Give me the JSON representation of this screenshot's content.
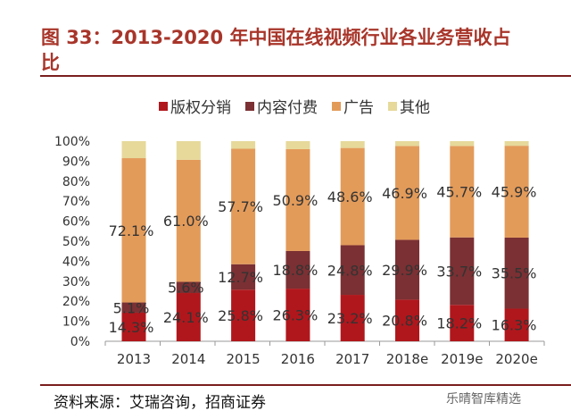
{
  "title_line1": "图 33：2013-2020 年中国在线视频行业各业务营收占",
  "title_line2": "比",
  "source": "资料来源：艾瑞咨询，招商证券",
  "watermark": "乐晴智库精选",
  "chart_data": {
    "type": "bar",
    "stacked": true,
    "categories": [
      "2013",
      "2014",
      "2015",
      "2016",
      "2017",
      "2018e",
      "2019e",
      "2020e"
    ],
    "ylim": [
      0,
      100
    ],
    "yticks": [
      "0%",
      "10%",
      "20%",
      "30%",
      "40%",
      "50%",
      "60%",
      "70%",
      "80%",
      "90%",
      "100%"
    ],
    "legend_position": "top",
    "grid": false,
    "series": [
      {
        "name": "版权分销",
        "color": "#b0171c",
        "values": [
          14.3,
          24.1,
          25.8,
          26.3,
          23.2,
          20.8,
          18.2,
          16.3
        ],
        "labels": [
          "14.3%",
          "24.1%",
          "25.8%",
          "26.3%",
          "23.2%",
          "20.8%",
          "18.2%",
          "16.3%"
        ]
      },
      {
        "name": "内容付费",
        "color": "#7b3033",
        "values": [
          5.1,
          5.6,
          12.7,
          18.8,
          24.8,
          29.9,
          33.7,
          35.5
        ],
        "labels": [
          "5.1%",
          "5.6%",
          "12.7%",
          "18.8%",
          "24.8%",
          "29.9%",
          "33.7%",
          "35.5%"
        ]
      },
      {
        "name": "广告",
        "color": "#e39b5a",
        "values": [
          72.1,
          61.0,
          57.7,
          50.9,
          48.6,
          46.9,
          45.7,
          45.9
        ],
        "labels": [
          "72.1%",
          "61.0%",
          "57.7%",
          "50.9%",
          "48.6%",
          "46.9%",
          "45.7%",
          "45.9%"
        ]
      },
      {
        "name": "其他",
        "color": "#e6d99a",
        "values": [
          8.5,
          9.3,
          3.8,
          4.0,
          3.4,
          2.4,
          2.4,
          2.3
        ],
        "labels": []
      }
    ]
  }
}
